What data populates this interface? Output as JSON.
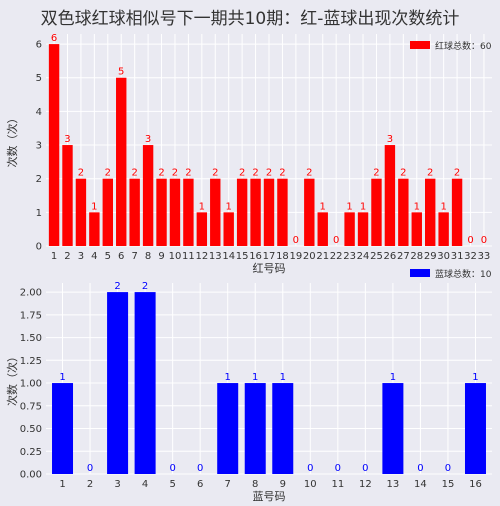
{
  "title": "双色球红球相似号下一期共10期：红-蓝球出现次数统计",
  "chart_data": [
    {
      "type": "bar",
      "id": "red",
      "color": "#ff0000",
      "categories": [
        "1",
        "2",
        "3",
        "4",
        "5",
        "6",
        "7",
        "8",
        "9",
        "10",
        "11",
        "12",
        "13",
        "14",
        "15",
        "16",
        "17",
        "18",
        "19",
        "20",
        "21",
        "22",
        "23",
        "24",
        "25",
        "26",
        "27",
        "28",
        "29",
        "30",
        "31",
        "32",
        "33"
      ],
      "values": [
        6,
        3,
        2,
        1,
        2,
        5,
        2,
        3,
        2,
        2,
        2,
        1,
        2,
        1,
        2,
        2,
        2,
        2,
        0,
        2,
        1,
        0,
        1,
        1,
        2,
        3,
        2,
        1,
        2,
        1,
        2,
        0,
        0
      ],
      "xlabel": "红号码",
      "ylabel": "次数（次）",
      "ylim": [
        0,
        6.3
      ],
      "yticks": [
        "0",
        "1",
        "2",
        "3",
        "4",
        "5",
        "6"
      ],
      "legend": "红球总数：60",
      "legend_position": "top-right",
      "grid": true
    },
    {
      "type": "bar",
      "id": "blue",
      "color": "#0000ff",
      "categories": [
        "1",
        "2",
        "3",
        "4",
        "5",
        "6",
        "7",
        "8",
        "9",
        "10",
        "11",
        "12",
        "13",
        "14",
        "15",
        "16"
      ],
      "values": [
        1,
        0,
        2,
        2,
        0,
        0,
        1,
        1,
        1,
        0,
        0,
        0,
        1,
        0,
        0,
        1
      ],
      "xlabel": "蓝号码",
      "ylabel": "次数（次）",
      "ylim": [
        0,
        2.1
      ],
      "yticks": [
        "0.00",
        "0.25",
        "0.50",
        "0.75",
        "1.00",
        "1.25",
        "1.50",
        "1.75",
        "2.00"
      ],
      "legend": "蓝球总数：10",
      "legend_position": "top-right",
      "grid": true
    }
  ]
}
